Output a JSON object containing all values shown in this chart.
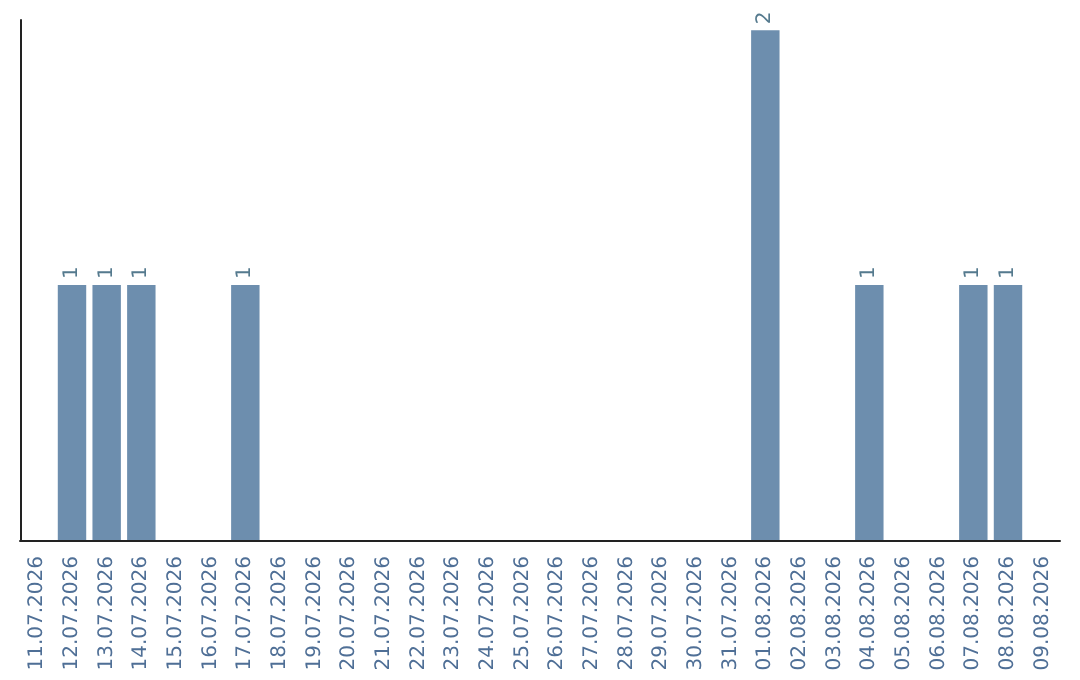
{
  "chart_data": {
    "type": "bar",
    "categories": [
      "11.07.2026",
      "12.07.2026",
      "13.07.2026",
      "14.07.2026",
      "15.07.2026",
      "16.07.2026",
      "17.07.2026",
      "18.07.2026",
      "19.07.2026",
      "20.07.2026",
      "21.07.2026",
      "22.07.2026",
      "23.07.2026",
      "24.07.2026",
      "25.07.2026",
      "26.07.2026",
      "27.07.2026",
      "28.07.2026",
      "29.07.2026",
      "30.07.2026",
      "31.07.2026",
      "01.08.2026",
      "02.08.2026",
      "03.08.2026",
      "04.08.2026",
      "05.08.2026",
      "06.08.2026",
      "07.08.2026",
      "08.08.2026",
      "09.08.2026"
    ],
    "values": [
      0,
      1,
      1,
      1,
      0,
      0,
      1,
      0,
      0,
      0,
      0,
      0,
      0,
      0,
      0,
      0,
      0,
      0,
      0,
      0,
      0,
      2,
      0,
      0,
      1,
      0,
      0,
      1,
      1,
      0
    ],
    "value_labels": [
      null,
      "1",
      "1",
      "1",
      null,
      null,
      "1",
      null,
      null,
      null,
      null,
      null,
      null,
      null,
      null,
      null,
      null,
      null,
      null,
      null,
      null,
      "2",
      null,
      null,
      "1",
      null,
      null,
      "1",
      "1",
      null
    ],
    "color": "#6d8eae",
    "ylim": [
      0,
      2.04
    ],
    "tick_labels": "x"
  }
}
